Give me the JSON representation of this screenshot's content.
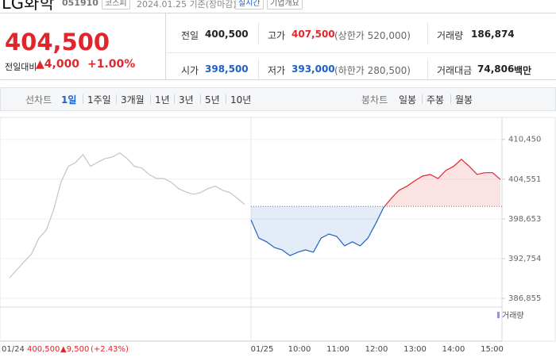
{
  "header": {
    "name": "LG화학",
    "code": "051910",
    "market": "코스피",
    "date": "2024.01.25 기준(장마감)",
    "realtime": "실시간",
    "company_info": "기업개요"
  },
  "quote": {
    "price": "404,500",
    "change_label": "전일대비",
    "change": "▲4,000",
    "change_rate": "+1.00%"
  },
  "summary": [
    [
      {
        "label": "전일",
        "value": "400,500"
      },
      {
        "label": "고가",
        "value": "407,500",
        "note": "(상한가 520,000)"
      },
      {
        "label": "거래량",
        "value": "186,874"
      }
    ],
    [
      {
        "label": "시가",
        "value": "398,500"
      },
      {
        "label": "저가",
        "value": "393,000",
        "note": "(하한가 280,500)"
      },
      {
        "label": "거래대금",
        "value": "74,806",
        "unit": "백만"
      }
    ]
  ],
  "tabs": {
    "line_label": "선차트",
    "line": [
      "1일",
      "1주일",
      "3개월",
      "1년",
      "3년",
      "5년",
      "10년"
    ],
    "candle_label": "봉차트",
    "candle": [
      "일봉",
      "주봉",
      "월봉"
    ]
  },
  "chart_data": {
    "type": "line",
    "ylim": [
      385800,
      412300
    ],
    "yticks": [
      {
        "value": 386855,
        "label": "386,855"
      },
      {
        "value": 392754,
        "label": "392,754"
      },
      {
        "value": 398653,
        "label": "398,653"
      },
      {
        "value": 404551,
        "label": "404,551"
      },
      {
        "value": 410450,
        "label": "410,450"
      }
    ],
    "baseline": 400500,
    "legend": "거래량",
    "previous": {
      "date": "01/24",
      "close": "400,500",
      "change": "▲9,500",
      "rate": "(+2.43%)",
      "color": "#c4c4c4",
      "values": [
        389900,
        391100,
        392300,
        393450,
        395800,
        397000,
        400000,
        404100,
        406450,
        407050,
        408200,
        406450,
        407050,
        407600,
        407850,
        408450,
        407600,
        406450,
        406200,
        405250,
        404650,
        404650,
        404100,
        403150,
        402650,
        402300,
        402550,
        403150,
        403500,
        402900,
        402550,
        401700,
        400800
      ]
    },
    "today": {
      "date": "01/25",
      "times": [
        "10:00",
        "11:00",
        "12:00",
        "13:00",
        "14:00",
        "15:00"
      ],
      "up_color": "#e2252b",
      "down_color": "#1f5fc8",
      "values": [
        398500,
        395800,
        395250,
        394400,
        394050,
        393200,
        393700,
        394050,
        393700,
        395800,
        396400,
        396050,
        394650,
        395250,
        394650,
        395800,
        397950,
        400300,
        401700,
        402900,
        403500,
        404300,
        405000,
        405250,
        404650,
        405850,
        406450,
        407500,
        406450,
        405250,
        405500,
        405500,
        404500
      ]
    }
  }
}
